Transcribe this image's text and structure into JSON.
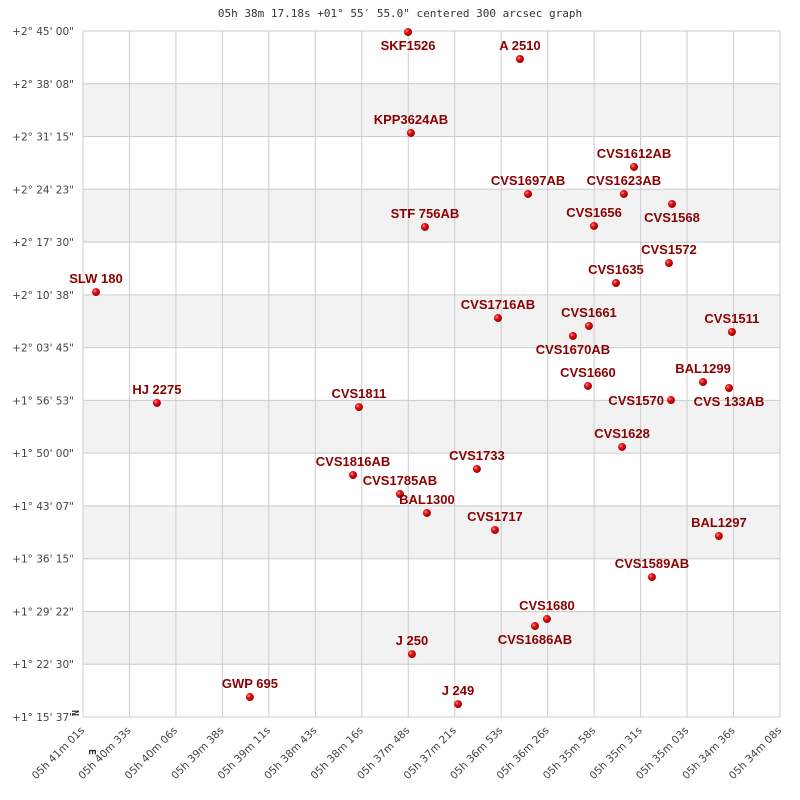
{
  "chart_data": {
    "type": "scatter",
    "title": "05h 38m 17.18s +01° 55′ 55.0\" centered 300 arcsec graph",
    "xlabel": "",
    "ylabel": "",
    "x_direction_label": "E",
    "y_direction_label": "N",
    "xlim": [
      "05h 41m 01s",
      "05h 34m 08s"
    ],
    "ylim": [
      "+1° 15' 37\"",
      "+2° 45' 00\""
    ],
    "grid": true,
    "alternating_row_shading": true,
    "x_ticks": [
      "05h 41m 01s",
      "05h 40m 33s",
      "05h 40m 06s",
      "05h 39m 38s",
      "05h 39m 11s",
      "05h 38m 43s",
      "05h 38m 16s",
      "05h 37m 48s",
      "05h 37m 21s",
      "05h 36m 53s",
      "05h 36m 26s",
      "05h 35m 58s",
      "05h 35m 31s",
      "05h 35m 03s",
      "05h 34m 36s",
      "05h 34m 08s"
    ],
    "y_ticks": [
      "+2° 45' 00\"",
      "+2° 38' 08\"",
      "+2° 31' 15\"",
      "+2° 24' 23\"",
      "+2° 17' 30\"",
      "+2° 10' 38\"",
      "+2° 03' 45\"",
      "+1° 56' 53\"",
      "+1° 50' 00\"",
      "+1° 43' 07\"",
      "+1° 36' 15\"",
      "+1° 29' 22\"",
      "+1° 22' 30\"",
      "+1° 15' 37\""
    ],
    "colors": {
      "marker": "#dd0000",
      "label": "#8b0000",
      "grid": "#cccccc",
      "band": "#f2f2f2"
    },
    "points": [
      {
        "name": "SKF1526",
        "ra": "05h 37m 48.4s",
        "dec": "+2° 44' 52\""
      },
      {
        "name": "A  2510",
        "ra": "05h 36m 42.1s",
        "dec": "+2° 41' 21\""
      },
      {
        "name": "KPP3624AB",
        "ra": "05h 37m 46.7s",
        "dec": "+2° 31' 43\""
      },
      {
        "name": "CVS1612AB",
        "ra": "05h 35m 34.5s",
        "dec": "+2° 27' 17\""
      },
      {
        "name": "CVS1697AB",
        "ra": "05h 36m 37.3s",
        "dec": "+2° 23' 46\""
      },
      {
        "name": "CVS1623AB",
        "ra": "05h 35m 40.5s",
        "dec": "+2° 23' 46\""
      },
      {
        "name": "CVS1568",
        "ra": "05h 35m 12.0s",
        "dec": "+2° 22' 28\""
      },
      {
        "name": "STF 756AB",
        "ra": "05h 37m 38.4s",
        "dec": "+2° 19' 28\""
      },
      {
        "name": "CVS1656",
        "ra": "05h 35m 58.2s",
        "dec": "+2° 19' 36\""
      },
      {
        "name": "CVS1572",
        "ra": "05h 35m 13.8s",
        "dec": "+2° 14' 46\""
      },
      {
        "name": "CVS1635",
        "ra": "05h 35m 45.2s",
        "dec": "+2° 12' 10\""
      },
      {
        "name": "SLW 180",
        "ra": "05h 40m 53.3s",
        "dec": "+2° 10' 59\""
      },
      {
        "name": "CVS1716AB",
        "ra": "05h 36m 55.1s",
        "dec": "+2° 07' 36\""
      },
      {
        "name": "CVS1661",
        "ra": "05h 36m 01.2s",
        "dec": "+2° 06' 34\""
      },
      {
        "name": "CVS1670AB",
        "ra": "05h 36m 10.7s",
        "dec": "+2° 05' 16\""
      },
      {
        "name": "CVS1511",
        "ra": "05h 34m 36.5s",
        "dec": "+2° 05' 47\""
      },
      {
        "name": "BAL1299",
        "ra": "05h 34m 53.6s",
        "dec": "+1° 59' 16\""
      },
      {
        "name": "CVS 133AB",
        "ra": "05h 34m 38.2s",
        "dec": "+1° 58' 29\""
      },
      {
        "name": "CVS1660",
        "ra": "05h 36m 01.8s",
        "dec": "+1° 58' 45\""
      },
      {
        "name": "CVS1570",
        "ra": "05h 35m 12.6s",
        "dec": "+1° 56' 55\""
      },
      {
        "name": "HJ 2275",
        "ra": "05h 40m 17.2s",
        "dec": "+1° 56' 32\""
      },
      {
        "name": "CVS1811",
        "ra": "05h 38m 17.5s",
        "dec": "+1° 56' 00\""
      },
      {
        "name": "CVS1628",
        "ra": "05h 35m 41.6s",
        "dec": "+1° 50' 48\""
      },
      {
        "name": "CVS1733",
        "ra": "05h 37m 07.6s",
        "dec": "+1° 47' 56\""
      },
      {
        "name": "CVS1816AB",
        "ra": "05h 38m 21.0s",
        "dec": "+1° 47' 09\""
      },
      {
        "name": "CVS1785AB",
        "ra": "05h 37m 53.2s",
        "dec": "+1° 44' 40\""
      },
      {
        "name": "BAL1300",
        "ra": "05h 37m 37.2s",
        "dec": "+1° 42' 12\""
      },
      {
        "name": "CVS1717",
        "ra": "05h 36m 56.9s",
        "dec": "+1° 39' 59\""
      },
      {
        "name": "BAL1297",
        "ra": "05h 34m 44.2s",
        "dec": "+1° 39' 12\""
      },
      {
        "name": "CVS1589AB",
        "ra": "05h 35m 23.9s",
        "dec": "+1° 33' 51\""
      },
      {
        "name": "CVS1680",
        "ra": "05h 36m 26.1s",
        "dec": "+1° 28' 23\""
      },
      {
        "name": "CVS1686AB",
        "ra": "05h 36m 33.2s",
        "dec": "+1° 27' 28\""
      },
      {
        "name": "J  250",
        "ra": "05h 37m 46.1s",
        "dec": "+1° 23' 49\""
      },
      {
        "name": "GWP 695",
        "ra": "05h 39m 22.1s",
        "dec": "+1° 18' 13\""
      },
      {
        "name": "J  249",
        "ra": "05h 37m 18.8s",
        "dec": "+1° 17' 18\""
      }
    ]
  }
}
